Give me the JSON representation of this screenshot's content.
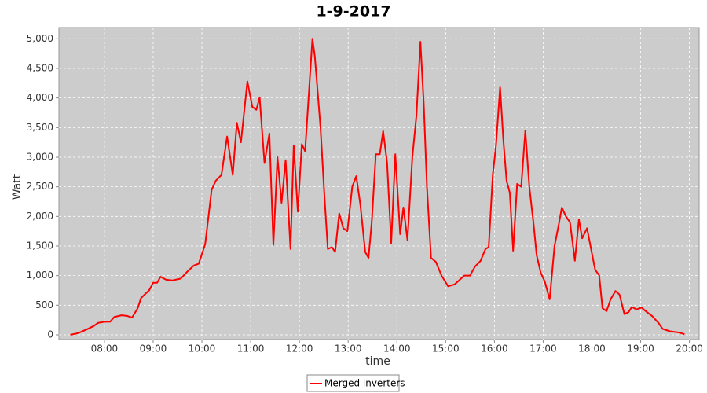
{
  "chart_data": {
    "type": "line",
    "title": "1-9-2017",
    "x_label": "time",
    "y_label": "Watt",
    "x": [
      "07:18",
      "07:28",
      "07:38",
      "07:47",
      "07:52",
      "08:00",
      "08:07",
      "08:12",
      "08:21",
      "08:28",
      "08:34",
      "08:41",
      "08:45",
      "08:51",
      "08:55",
      "09:00",
      "09:05",
      "09:09",
      "09:16",
      "09:24",
      "09:34",
      "09:43",
      "09:50",
      "09:56",
      "10:04",
      "10:12",
      "10:17",
      "10:24",
      "10:31",
      "10:38",
      "10:43",
      "10:48",
      "10:56",
      "11:02",
      "11:07",
      "11:11",
      "11:17",
      "11:23",
      "11:28",
      "11:33",
      "11:38",
      "11:43",
      "11:49",
      "11:53",
      "11:58",
      "12:03",
      "12:07",
      "12:16",
      "12:19",
      "12:26",
      "12:31",
      "12:35",
      "12:40",
      "12:44",
      "12:49",
      "12:54",
      "12:59",
      "13:05",
      "13:10",
      "13:15",
      "13:21",
      "13:25",
      "13:29",
      "13:34",
      "13:39",
      "13:43",
      "13:48",
      "13:53",
      "13:58",
      "14:04",
      "14:08",
      "14:13",
      "14:19",
      "14:24",
      "14:29",
      "14:33",
      "14:37",
      "14:42",
      "14:48",
      "14:55",
      "15:03",
      "15:11",
      "15:23",
      "15:30",
      "15:36",
      "15:43",
      "15:49",
      "15:53",
      "15:58",
      "16:02",
      "16:07",
      "16:11",
      "16:15",
      "16:19",
      "16:23",
      "16:28",
      "16:33",
      "16:38",
      "16:43",
      "16:48",
      "16:52",
      "16:57",
      "17:02",
      "17:08",
      "17:14",
      "17:19",
      "17:23",
      "17:28",
      "17:33",
      "17:39",
      "17:44",
      "17:48",
      "17:54",
      "17:59",
      "18:04",
      "18:09",
      "18:13",
      "18:18",
      "18:23",
      "18:29",
      "18:34",
      "18:40",
      "18:45",
      "18:49",
      "18:55",
      "19:01",
      "19:08",
      "19:14",
      "19:22",
      "19:27",
      "19:36",
      "19:47",
      "19:54"
    ],
    "series": [
      {
        "name": "Merged inverters",
        "color": "#ff0000",
        "values": [
          0,
          30,
          90,
          150,
          200,
          220,
          220,
          300,
          330,
          320,
          290,
          450,
          620,
          700,
          750,
          880,
          880,
          980,
          930,
          920,
          950,
          1080,
          1170,
          1200,
          1530,
          2450,
          2600,
          2700,
          3350,
          2700,
          3580,
          3250,
          4280,
          3850,
          3800,
          4010,
          2900,
          3400,
          1520,
          3000,
          2230,
          2950,
          1450,
          3200,
          2080,
          3220,
          3100,
          5000,
          4700,
          3500,
          2300,
          1450,
          1480,
          1400,
          2050,
          1800,
          1750,
          2500,
          2680,
          2200,
          1400,
          1300,
          1900,
          3050,
          3050,
          3440,
          2900,
          1550,
          3050,
          1700,
          2150,
          1600,
          3000,
          3700,
          4950,
          3900,
          2500,
          1300,
          1230,
          1000,
          820,
          850,
          1000,
          1000,
          1150,
          1250,
          1450,
          1480,
          2700,
          3200,
          4180,
          3300,
          2600,
          2400,
          1420,
          2550,
          2500,
          3450,
          2500,
          1900,
          1350,
          1050,
          900,
          600,
          1500,
          1850,
          2150,
          2000,
          1900,
          1250,
          1950,
          1630,
          1800,
          1450,
          1100,
          1000,
          450,
          400,
          600,
          740,
          680,
          350,
          380,
          470,
          430,
          460,
          380,
          320,
          200,
          100,
          60,
          40,
          10
        ]
      }
    ],
    "xlim": [
      "07:04",
      "20:12"
    ],
    "xticks": [
      "08:00",
      "09:00",
      "10:00",
      "11:00",
      "12:00",
      "13:00",
      "14:00",
      "15:00",
      "16:00",
      "17:00",
      "18:00",
      "19:00",
      "20:00"
    ],
    "ylim": [
      -80,
      5190
    ],
    "yticks": [
      0,
      500,
      {
        "value": 1000,
        "label": "1,000"
      },
      {
        "value": 1500,
        "label": "1,500"
      },
      {
        "value": 2000,
        "label": "2,000"
      },
      {
        "value": 2500,
        "label": "2,500"
      },
      {
        "value": 3000,
        "label": "3,000"
      },
      {
        "value": 3500,
        "label": "3,500"
      },
      {
        "value": 4000,
        "label": "4,000"
      },
      {
        "value": 4500,
        "label": "4,500"
      },
      {
        "value": 5000,
        "label": "5,000"
      }
    ],
    "grid": true,
    "legend": "bottom",
    "plot_background": "#cccccc"
  }
}
